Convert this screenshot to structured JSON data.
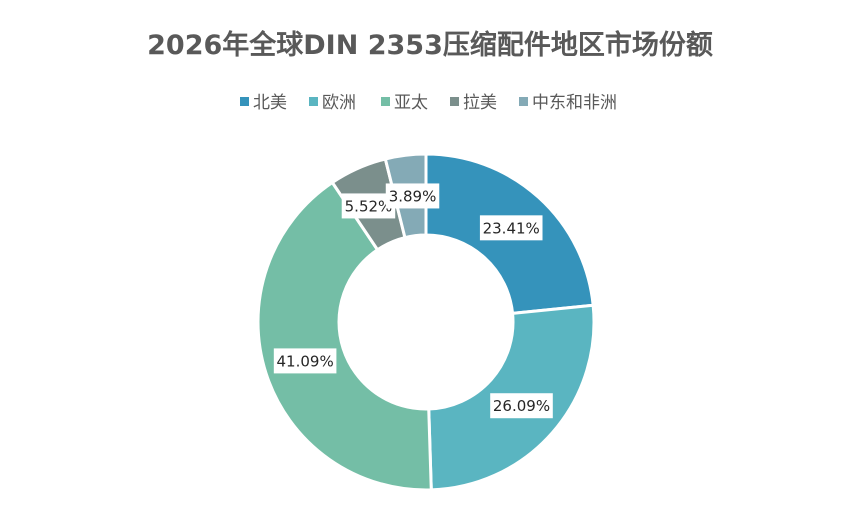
{
  "chart_data": {
    "type": "pie",
    "variant": "doughnut",
    "title": "2026年全球DIN 2353压缩配件地区市场份额",
    "legend_position": "top",
    "categories": [
      "北美",
      "欧洲",
      "亚太",
      "拉美",
      "中东和非洲"
    ],
    "values": [
      23.41,
      26.09,
      41.09,
      5.52,
      3.89
    ],
    "value_labels": [
      "23.41%",
      "26.09%",
      "41.09%",
      "5.52%",
      "3.89%"
    ],
    "colors": [
      "#3593bb",
      "#5ab5c1",
      "#74bea6",
      "#7b8f8c",
      "#84aab6"
    ],
    "unit": "%"
  }
}
